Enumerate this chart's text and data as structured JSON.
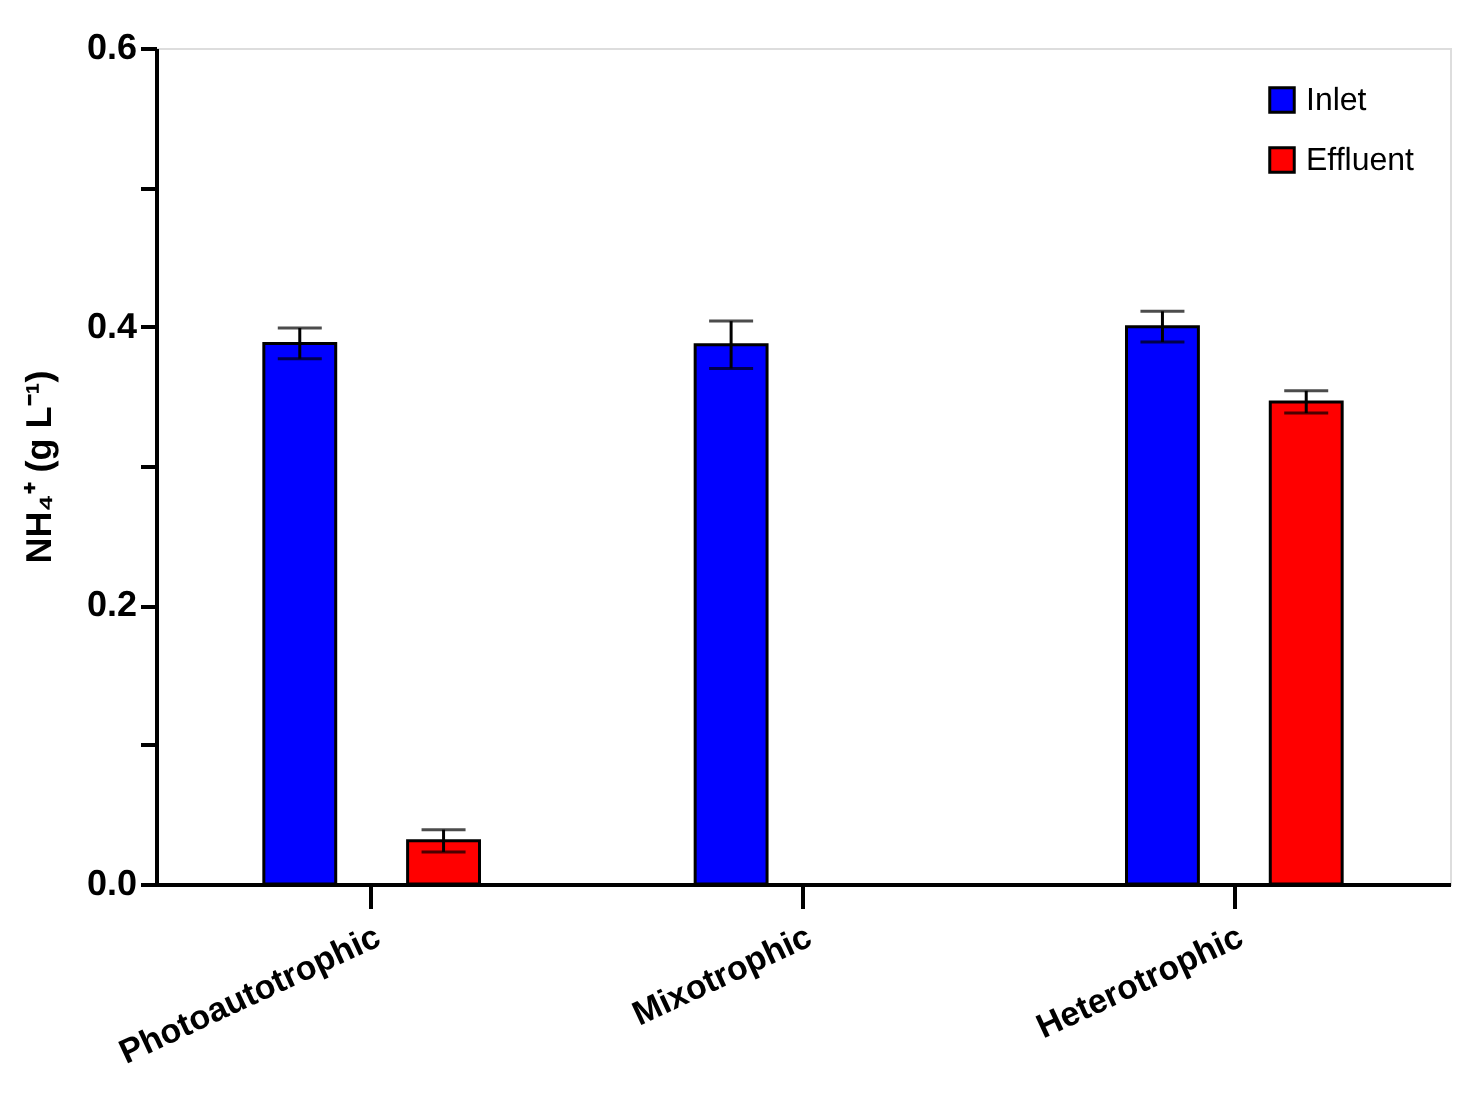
{
  "chart_data": {
    "type": "bar",
    "ylabel": "NH₄⁺ (g L⁻¹)",
    "categories": [
      "Photoautotrophic",
      "Mixotrophic",
      "Heterotrophic"
    ],
    "series": [
      {
        "name": "Inlet",
        "color": "#0000ff",
        "values": [
          0.388,
          0.387,
          0.4
        ],
        "errors": [
          0.011,
          0.017,
          0.011
        ]
      },
      {
        "name": "Effluent",
        "color": "#ff0000",
        "values": [
          0.031,
          null,
          0.346
        ],
        "errors": [
          0.008,
          null,
          0.008
        ]
      }
    ],
    "ylim": [
      0,
      0.6
    ],
    "yticks": [
      "0.0",
      {
        "value": 0.1,
        "label": null
      },
      {
        "value": 0.2,
        "label": "0.2"
      },
      {
        "value": 0.3,
        "label": null
      },
      {
        "value": 0.4,
        "label": "0.4"
      },
      {
        "value": 0.5,
        "label": null
      },
      {
        "value": 0.6,
        "label": "0.6"
      }
    ],
    "grid": false,
    "legend": "top right"
  }
}
